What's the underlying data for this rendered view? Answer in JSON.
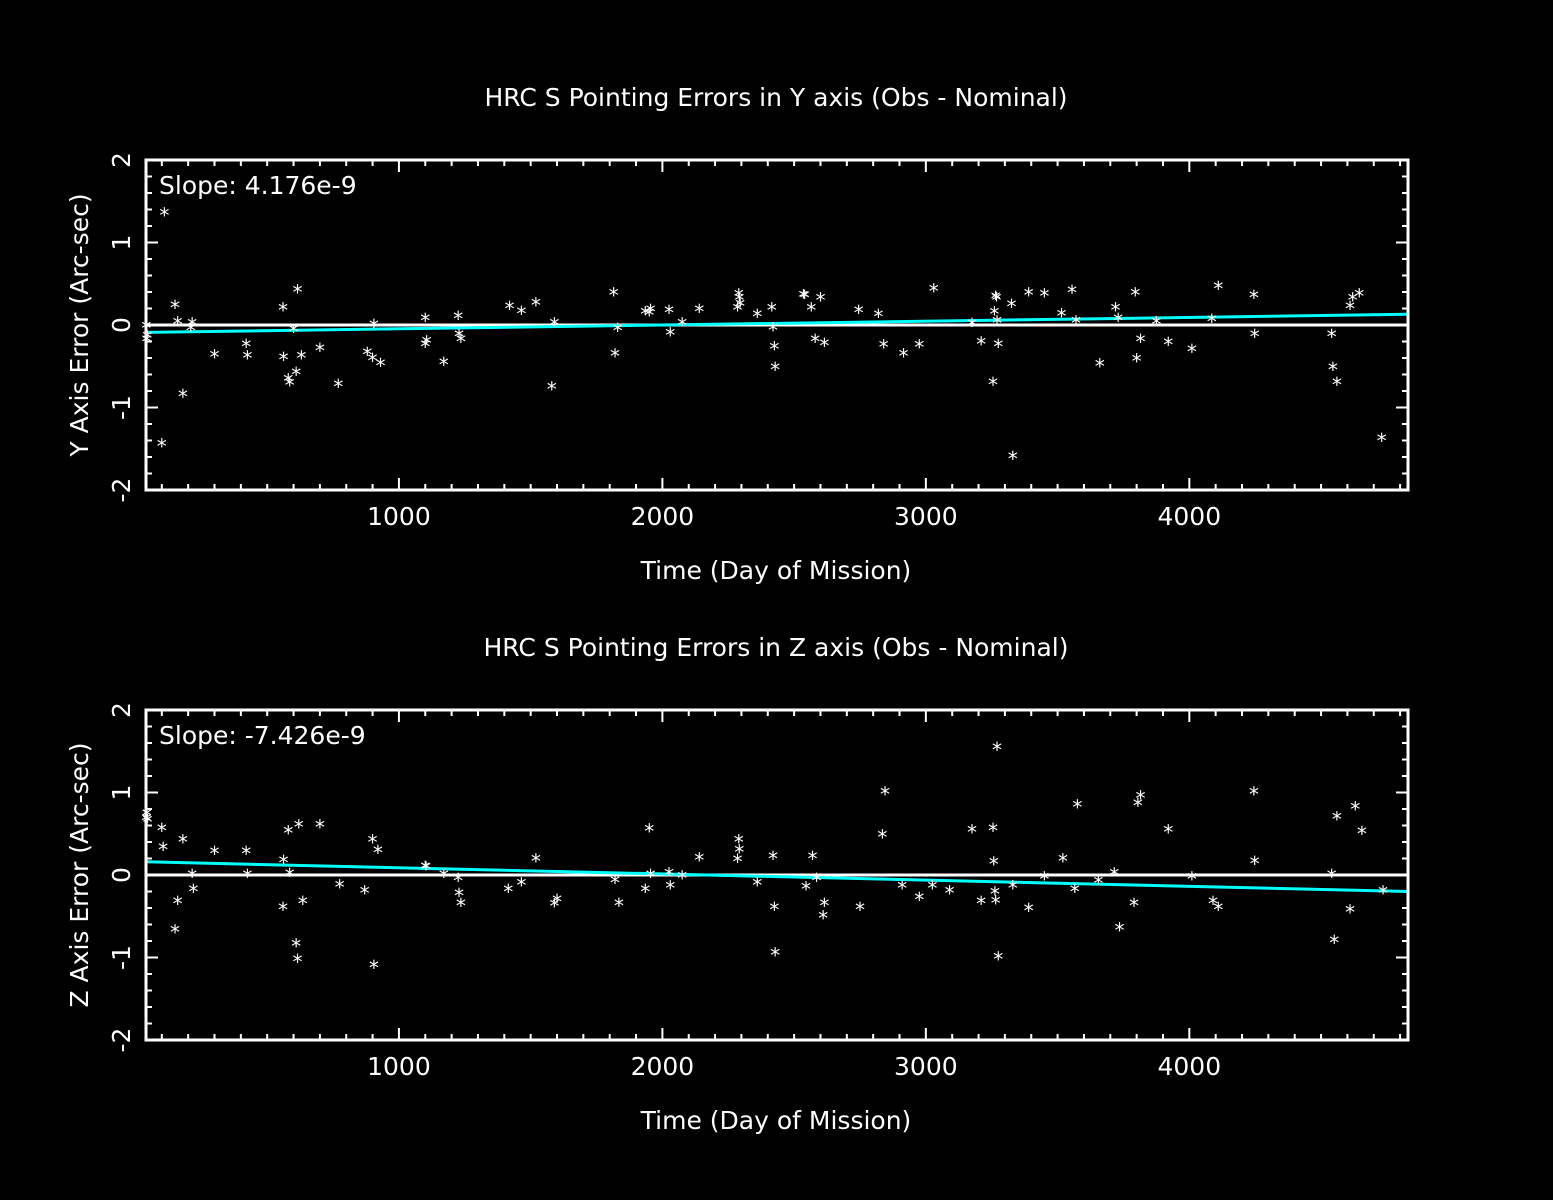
{
  "colors": {
    "background": "#000000",
    "foreground": "#ffffff",
    "fit_line": "#00ffff"
  },
  "chart_data": [
    {
      "type": "scatter",
      "title": "HRC S Pointing Errors in Y axis (Obs - Nominal)",
      "xlabel": "Time (Day of Mission)",
      "ylabel": "Y Axis Error (Arc-sec)",
      "annotation": "Slope: 4.176e-9",
      "xlim": [
        40,
        4830
      ],
      "ylim": [
        -2,
        2
      ],
      "xticks": [
        1000,
        2000,
        3000,
        4000
      ],
      "xtick_labels": [
        "1000",
        "2000",
        "3000",
        "4000"
      ],
      "yticks": [
        -2,
        -1,
        0,
        1,
        2
      ],
      "ytick_labels": [
        "-2",
        "-1",
        "0",
        "1",
        "2"
      ],
      "zero_line": 0,
      "fit_line": {
        "x": [
          40,
          4830
        ],
        "y": [
          -0.09,
          0.13
        ],
        "color": "#00ffff"
      },
      "marker": "*",
      "points": [
        [
          41,
          -0.02
        ],
        [
          42,
          -0.18
        ],
        [
          45,
          -0.14
        ],
        [
          100,
          -1.45
        ],
        [
          110,
          1.35
        ],
        [
          150,
          0.23
        ],
        [
          160,
          0.03
        ],
        [
          180,
          -0.85
        ],
        [
          210,
          -0.05
        ],
        [
          215,
          0.02
        ],
        [
          300,
          -0.37
        ],
        [
          420,
          -0.24
        ],
        [
          425,
          -0.38
        ],
        [
          560,
          0.2
        ],
        [
          562,
          -0.4
        ],
        [
          580,
          -0.66
        ],
        [
          585,
          -0.71
        ],
        [
          600,
          -0.06
        ],
        [
          610,
          -0.58
        ],
        [
          615,
          0.42
        ],
        [
          630,
          -0.38
        ],
        [
          700,
          -0.29
        ],
        [
          770,
          -0.73
        ],
        [
          880,
          -0.34
        ],
        [
          900,
          -0.41
        ],
        [
          905,
          0.0
        ],
        [
          930,
          -0.47
        ],
        [
          1100,
          0.07
        ],
        [
          1100,
          -0.24
        ],
        [
          1105,
          -0.2
        ],
        [
          1170,
          -0.46
        ],
        [
          1225,
          0.1
        ],
        [
          1228,
          -0.12
        ],
        [
          1235,
          -0.18
        ],
        [
          1420,
          0.22
        ],
        [
          1465,
          0.16
        ],
        [
          1520,
          0.26
        ],
        [
          1580,
          -0.76
        ],
        [
          1590,
          0.02
        ],
        [
          1815,
          0.38
        ],
        [
          1820,
          -0.36
        ],
        [
          1830,
          -0.05
        ],
        [
          1935,
          0.15
        ],
        [
          1950,
          0.14
        ],
        [
          1955,
          0.18
        ],
        [
          2025,
          0.17
        ],
        [
          2030,
          -0.1
        ],
        [
          2075,
          0.02
        ],
        [
          2140,
          0.18
        ],
        [
          2285,
          0.2
        ],
        [
          2290,
          0.37
        ],
        [
          2292,
          0.32
        ],
        [
          2295,
          0.25
        ],
        [
          2360,
          0.12
        ],
        [
          2415,
          0.2
        ],
        [
          2420,
          -0.04
        ],
        [
          2425,
          -0.27
        ],
        [
          2428,
          -0.52
        ],
        [
          2535,
          0.36
        ],
        [
          2540,
          0.35
        ],
        [
          2565,
          0.2
        ],
        [
          2580,
          -0.18
        ],
        [
          2600,
          0.32
        ],
        [
          2615,
          -0.23
        ],
        [
          2745,
          0.17
        ],
        [
          2820,
          0.12
        ],
        [
          2840,
          -0.25
        ],
        [
          2915,
          -0.36
        ],
        [
          2975,
          -0.25
        ],
        [
          3030,
          0.43
        ],
        [
          3175,
          0.01
        ],
        [
          3210,
          -0.21
        ],
        [
          3255,
          -0.7
        ],
        [
          3260,
          0.15
        ],
        [
          3265,
          0.34
        ],
        [
          3268,
          0.32
        ],
        [
          3270,
          0.04
        ],
        [
          3275,
          -0.24
        ],
        [
          3325,
          0.24
        ],
        [
          3330,
          -1.6
        ],
        [
          3390,
          0.38
        ],
        [
          3450,
          0.37
        ],
        [
          3515,
          0.13
        ],
        [
          3555,
          0.41
        ],
        [
          3570,
          0.04
        ],
        [
          3660,
          -0.48
        ],
        [
          3720,
          0.2
        ],
        [
          3730,
          0.07
        ],
        [
          3795,
          0.38
        ],
        [
          3800,
          -0.42
        ],
        [
          3815,
          -0.18
        ],
        [
          3875,
          0.03
        ],
        [
          3920,
          -0.22
        ],
        [
          4010,
          -0.3
        ],
        [
          4085,
          0.06
        ],
        [
          4110,
          0.46
        ],
        [
          4245,
          0.35
        ],
        [
          4248,
          -0.12
        ],
        [
          4540,
          -0.12
        ],
        [
          4545,
          -0.52
        ],
        [
          4560,
          -0.7
        ],
        [
          4610,
          0.22
        ],
        [
          4620,
          0.32
        ],
        [
          4645,
          0.37
        ],
        [
          4730,
          -1.38
        ]
      ]
    },
    {
      "type": "scatter",
      "title": "HRC S Pointing Errors in  Z axis (Obs - Nominal)",
      "xlabel": "Time (Day of Mission)",
      "ylabel": "Z Axis Error (Arc-sec)",
      "annotation": "Slope: -7.426e-9",
      "xlim": [
        40,
        4830
      ],
      "ylim": [
        -2,
        2
      ],
      "xticks": [
        1000,
        2000,
        3000,
        4000
      ],
      "xtick_labels": [
        "1000",
        "2000",
        "3000",
        "4000"
      ],
      "yticks": [
        -2,
        -1,
        0,
        1,
        2
      ],
      "ytick_labels": [
        "-2",
        "-1",
        "0",
        "1",
        "2"
      ],
      "zero_line": 0,
      "fit_line": {
        "x": [
          40,
          4830
        ],
        "y": [
          0.16,
          -0.2
        ],
        "color": "#00ffff"
      },
      "marker": "*",
      "points": [
        [
          41,
          0.68
        ],
        [
          43,
          0.74
        ],
        [
          46,
          0.66
        ],
        [
          100,
          0.56
        ],
        [
          105,
          0.33
        ],
        [
          150,
          -0.67
        ],
        [
          160,
          -0.33
        ],
        [
          180,
          0.42
        ],
        [
          215,
          0.0
        ],
        [
          220,
          -0.18
        ],
        [
          300,
          0.28
        ],
        [
          420,
          0.28
        ],
        [
          425,
          0.0
        ],
        [
          560,
          -0.4
        ],
        [
          562,
          0.17
        ],
        [
          580,
          0.53
        ],
        [
          585,
          0.01
        ],
        [
          610,
          -0.84
        ],
        [
          615,
          -1.03
        ],
        [
          620,
          0.6
        ],
        [
          635,
          -0.33
        ],
        [
          700,
          0.6
        ],
        [
          775,
          -0.13
        ],
        [
          870,
          -0.2
        ],
        [
          900,
          0.42
        ],
        [
          905,
          -1.1
        ],
        [
          920,
          0.29
        ],
        [
          1100,
          0.1
        ],
        [
          1103,
          0.09
        ],
        [
          1170,
          0.0
        ],
        [
          1225,
          -0.05
        ],
        [
          1228,
          -0.23
        ],
        [
          1235,
          -0.35
        ],
        [
          1415,
          -0.18
        ],
        [
          1465,
          -0.1
        ],
        [
          1520,
          0.19
        ],
        [
          1590,
          -0.36
        ],
        [
          1600,
          -0.3
        ],
        [
          1820,
          -0.07
        ],
        [
          1835,
          -0.35
        ],
        [
          1935,
          -0.18
        ],
        [
          1950,
          0.55
        ],
        [
          1955,
          0.0
        ],
        [
          2025,
          0.02
        ],
        [
          2030,
          -0.14
        ],
        [
          2075,
          -0.02
        ],
        [
          2140,
          0.2
        ],
        [
          2285,
          0.18
        ],
        [
          2290,
          0.42
        ],
        [
          2292,
          0.3
        ],
        [
          2360,
          -0.1
        ],
        [
          2420,
          0.22
        ],
        [
          2425,
          -0.4
        ],
        [
          2428,
          -0.95
        ],
        [
          2545,
          -0.15
        ],
        [
          2570,
          0.22
        ],
        [
          2585,
          -0.05
        ],
        [
          2610,
          -0.5
        ],
        [
          2615,
          -0.35
        ],
        [
          2750,
          -0.4
        ],
        [
          2835,
          0.48
        ],
        [
          2845,
          1.0
        ],
        [
          2910,
          -0.14
        ],
        [
          2975,
          -0.28
        ],
        [
          3025,
          -0.14
        ],
        [
          3090,
          -0.2
        ],
        [
          3175,
          0.54
        ],
        [
          3210,
          -0.33
        ],
        [
          3255,
          0.56
        ],
        [
          3258,
          0.15
        ],
        [
          3262,
          -0.21
        ],
        [
          3265,
          -0.32
        ],
        [
          3270,
          1.54
        ],
        [
          3275,
          -1.0
        ],
        [
          3330,
          -0.14
        ],
        [
          3390,
          -0.41
        ],
        [
          3450,
          -0.03
        ],
        [
          3520,
          0.19
        ],
        [
          3565,
          -0.18
        ],
        [
          3575,
          0.84
        ],
        [
          3655,
          -0.08
        ],
        [
          3715,
          0.02
        ],
        [
          3735,
          -0.65
        ],
        [
          3790,
          -0.35
        ],
        [
          3805,
          0.86
        ],
        [
          3815,
          0.95
        ],
        [
          3920,
          0.54
        ],
        [
          4010,
          -0.03
        ],
        [
          4090,
          -0.33
        ],
        [
          4110,
          -0.4
        ],
        [
          4245,
          1.0
        ],
        [
          4248,
          0.16
        ],
        [
          4540,
          0.0
        ],
        [
          4550,
          -0.8
        ],
        [
          4560,
          0.7
        ],
        [
          4610,
          -0.43
        ],
        [
          4630,
          0.82
        ],
        [
          4655,
          0.52
        ],
        [
          4735,
          -0.2
        ]
      ]
    }
  ]
}
